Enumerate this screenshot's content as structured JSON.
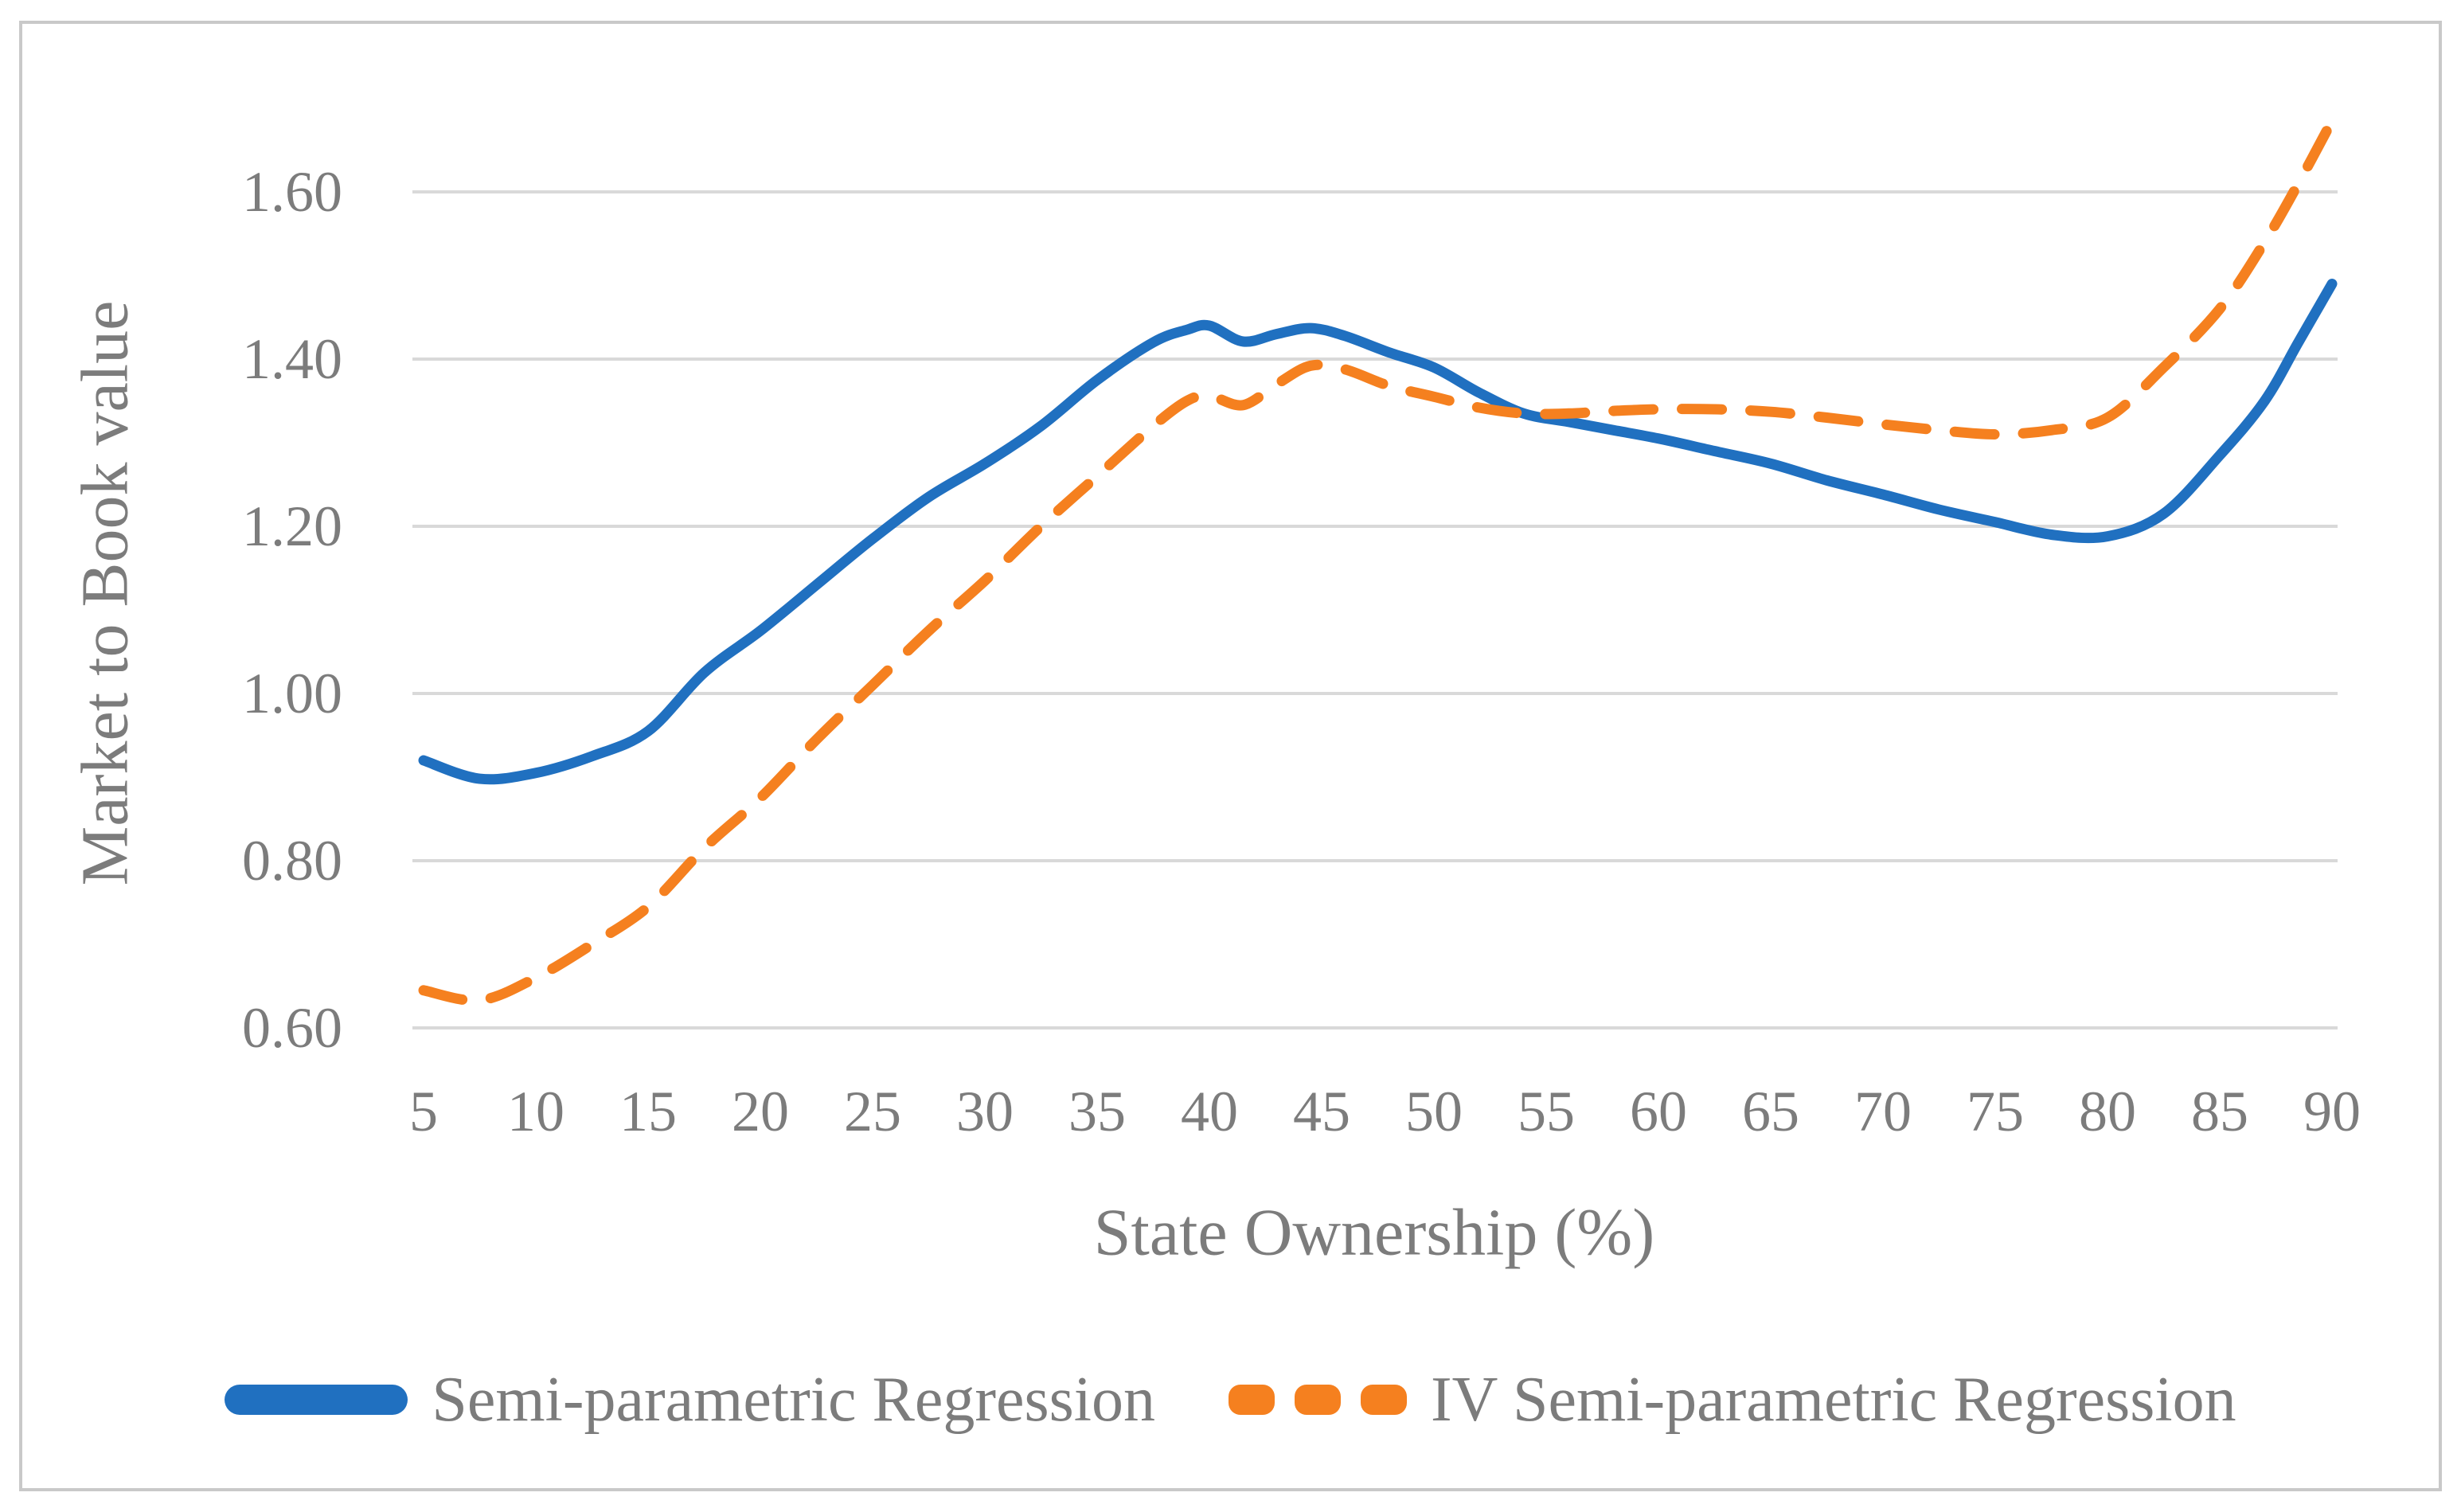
{
  "chart_data": {
    "type": "line",
    "title": "",
    "xlabel": "State Ownership (%)",
    "ylabel": "Market to Book value",
    "x_ticks": [
      5,
      10,
      15,
      20,
      25,
      30,
      35,
      40,
      45,
      50,
      55,
      60,
      65,
      70,
      75,
      80,
      85,
      90
    ],
    "y_ticks": [
      "0.60",
      "0.80",
      "1.00",
      "1.20",
      "1.40",
      "1.60"
    ],
    "x_range": [
      5,
      90
    ],
    "y_range": [
      0.6,
      1.6
    ],
    "grid": "horizontal",
    "legend_position": "bottom",
    "x": [
      5,
      7.5,
      10,
      12.5,
      15,
      17.5,
      20,
      22.5,
      25,
      27.5,
      30,
      32.5,
      35,
      37.5,
      39,
      40,
      41.5,
      43,
      44.5,
      46,
      48,
      50,
      52,
      54,
      56,
      58,
      60,
      62.5,
      65,
      67.5,
      70,
      72.5,
      75,
      77.5,
      80,
      82.5,
      85,
      87,
      88.5,
      90
    ],
    "series": [
      {
        "name": "Semi-parametric Regression",
        "style": "solid",
        "color": "#2070C0",
        "values": [
          0.92,
          0.898,
          0.905,
          0.925,
          0.955,
          1.025,
          1.075,
          1.13,
          1.185,
          1.235,
          1.275,
          1.32,
          1.375,
          1.42,
          1.435,
          1.44,
          1.421,
          1.43,
          1.437,
          1.428,
          1.408,
          1.39,
          1.36,
          1.335,
          1.325,
          1.315,
          1.305,
          1.29,
          1.275,
          1.255,
          1.238,
          1.22,
          1.205,
          1.19,
          1.188,
          1.215,
          1.285,
          1.35,
          1.42,
          1.49
        ]
      },
      {
        "name": "IV Semi-parametric Regression",
        "style": "dashed",
        "color": "#F5801F",
        "values": [
          0.645,
          0.633,
          0.66,
          0.7,
          0.745,
          0.815,
          0.875,
          0.945,
          1.01,
          1.075,
          1.135,
          1.2,
          1.26,
          1.32,
          1.35,
          1.356,
          1.345,
          1.37,
          1.392,
          1.388,
          1.368,
          1.355,
          1.342,
          1.335,
          1.335,
          1.338,
          1.34,
          1.34,
          1.337,
          1.33,
          1.322,
          1.315,
          1.31,
          1.315,
          1.33,
          1.39,
          1.46,
          1.54,
          1.61,
          1.685
        ]
      }
    ]
  },
  "colors": {
    "gridline": "#D9D9D9",
    "axis_text": "#7C7C7C",
    "frame": "#C9C9C9"
  }
}
